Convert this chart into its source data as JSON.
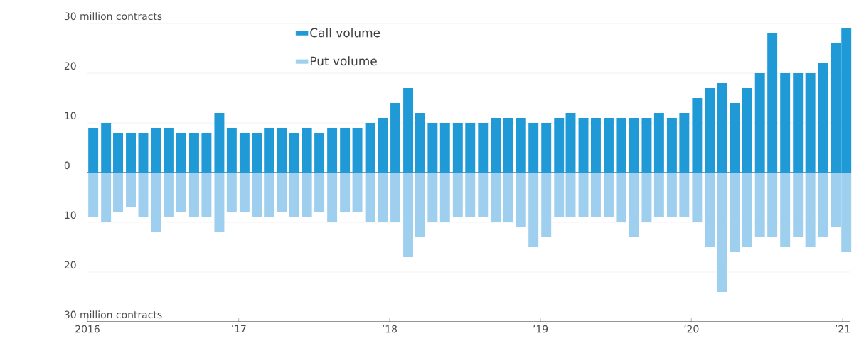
{
  "chart_data": [
    {
      "type": "bar",
      "x": [
        "2016-01-15",
        "2016-02-15",
        "2016-03-15",
        "2016-04-15",
        "2016-05-15",
        "2016-06-15",
        "2016-07-15",
        "2016-08-15",
        "2016-09-15",
        "2016-10-15",
        "2016-11-15",
        "2016-12-15",
        "2017-01-15",
        "2017-02-15",
        "2017-03-15",
        "2017-04-15",
        "2017-05-15",
        "2017-06-15",
        "2017-07-15",
        "2017-08-15",
        "2017-09-15",
        "2017-10-15",
        "2017-11-15",
        "2017-12-15",
        "2018-01-15",
        "2018-02-15",
        "2018-03-15",
        "2018-04-15",
        "2018-05-15",
        "2018-06-15",
        "2018-07-15",
        "2018-08-15",
        "2018-09-15",
        "2018-10-15",
        "2018-11-15",
        "2018-12-15",
        "2019-01-15",
        "2019-02-15",
        "2019-03-15",
        "2019-04-15",
        "2019-05-15",
        "2019-06-15",
        "2019-07-15",
        "2019-08-15",
        "2019-09-15",
        "2019-10-15",
        "2019-11-15",
        "2019-12-15",
        "2020-01-15",
        "2020-02-15",
        "2020-03-15",
        "2020-04-15",
        "2020-05-15",
        "2020-06-15",
        "2020-07-15",
        "2020-08-15",
        "2020-09-15",
        "2020-10-15",
        "2020-11-15",
        "2020-12-15",
        "2021-01-10"
      ],
      "series": [
        {
          "name": "Call volume",
          "color": "#1f9ad6",
          "values": [
            9,
            10,
            8,
            8,
            8,
            9,
            9,
            8,
            8,
            8,
            12,
            9,
            8,
            8,
            9,
            9,
            8,
            9,
            8,
            9,
            9,
            9,
            10,
            11,
            14,
            17,
            12,
            10,
            10,
            10,
            10,
            10,
            11,
            11,
            11,
            10,
            10,
            11,
            12,
            11,
            11,
            11,
            11,
            11,
            11,
            12,
            11,
            12,
            15,
            17,
            18,
            14,
            17,
            20,
            28,
            20,
            20,
            20,
            22,
            26,
            29
          ]
        }
      ],
      "xlim": [
        "2016-01-01",
        "2021-01-20"
      ],
      "ylim": [
        0,
        30
      ],
      "yticks": [
        0,
        10,
        20,
        {
          "value": 30,
          "label": "30 million contracts"
        }
      ],
      "tick_labels": "y",
      "grid": "y",
      "legend": "top left"
    },
    {
      "type": "bar",
      "x": [
        "2016-01-15",
        "2016-02-15",
        "2016-03-15",
        "2016-04-15",
        "2016-05-15",
        "2016-06-15",
        "2016-07-15",
        "2016-08-15",
        "2016-09-15",
        "2016-10-15",
        "2016-11-15",
        "2016-12-15",
        "2017-01-15",
        "2017-02-15",
        "2017-03-15",
        "2017-04-15",
        "2017-05-15",
        "2017-06-15",
        "2017-07-15",
        "2017-08-15",
        "2017-09-15",
        "2017-10-15",
        "2017-11-15",
        "2017-12-15",
        "2018-01-15",
        "2018-02-15",
        "2018-03-15",
        "2018-04-15",
        "2018-05-15",
        "2018-06-15",
        "2018-07-15",
        "2018-08-15",
        "2018-09-15",
        "2018-10-15",
        "2018-11-15",
        "2018-12-15",
        "2019-01-15",
        "2019-02-15",
        "2019-03-15",
        "2019-04-15",
        "2019-05-15",
        "2019-06-15",
        "2019-07-15",
        "2019-08-15",
        "2019-09-15",
        "2019-10-15",
        "2019-11-15",
        "2019-12-15",
        "2020-01-15",
        "2020-02-15",
        "2020-03-15",
        "2020-04-15",
        "2020-05-15",
        "2020-06-15",
        "2020-07-15",
        "2020-08-15",
        "2020-09-15",
        "2020-10-15",
        "2020-11-15",
        "2020-12-15",
        "2021-01-10"
      ],
      "series": [
        {
          "name": "Put volume",
          "color": "#9fcfee",
          "values": [
            9,
            10,
            8,
            7,
            9,
            12,
            9,
            8,
            9,
            9,
            12,
            8,
            8,
            9,
            9,
            8,
            9,
            9,
            8,
            10,
            8,
            8,
            10,
            10,
            10,
            17,
            13,
            10,
            10,
            9,
            9,
            9,
            10,
            10,
            11,
            15,
            13,
            9,
            9,
            9,
            9,
            9,
            10,
            13,
            10,
            9,
            9,
            9,
            10,
            15,
            24,
            16,
            15,
            13,
            13,
            15,
            13,
            15,
            13,
            11,
            16
          ]
        }
      ],
      "xlim": [
        "2016-01-01",
        "2021-01-20"
      ],
      "xticks": [
        {
          "value": "2016-01-01",
          "label": "2016"
        },
        {
          "value": "2017-01-01",
          "label": "’17"
        },
        {
          "value": "2018-01-01",
          "label": "’18"
        },
        {
          "value": "2019-01-01",
          "label": "’19"
        },
        {
          "value": "2020-01-01",
          "label": "’20"
        },
        {
          "value": "2021-01-01",
          "label": "’21"
        }
      ],
      "ylim": [
        30,
        0
      ],
      "yticks": [
        10,
        20,
        {
          "value": 30,
          "label": "30 million contracts"
        }
      ],
      "grid": "y",
      "legend": "top"
    }
  ]
}
